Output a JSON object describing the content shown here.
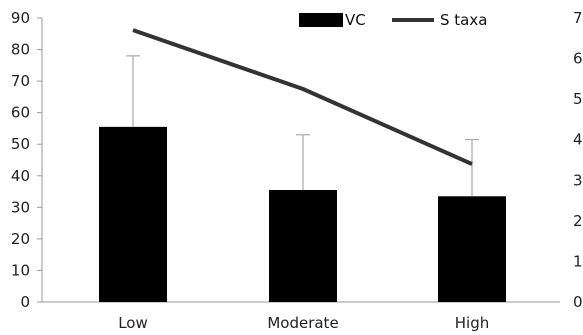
{
  "chart_data": {
    "type": "bar",
    "categories": [
      "Low",
      "Moderate",
      "High"
    ],
    "series": [
      {
        "name": "VC",
        "type": "bar",
        "axis": "left",
        "values": [
          55.5,
          35.5,
          33.5
        ],
        "error_upper": [
          78,
          53,
          51.5
        ],
        "color": "#000000"
      },
      {
        "name": "S taxa",
        "type": "line",
        "axis": "right",
        "values": [
          6.7,
          5.25,
          3.4
        ],
        "color": "#333333"
      }
    ],
    "y_left": {
      "ylim": [
        0,
        90
      ],
      "ticks": [
        0,
        10,
        20,
        30,
        40,
        50,
        60,
        70,
        80,
        90
      ]
    },
    "y_right": {
      "ylim": [
        0,
        7
      ],
      "ticks": [
        0,
        1,
        2,
        3,
        4,
        5,
        6,
        7
      ]
    },
    "xlabel": "",
    "ylabel": "",
    "title": "",
    "grid": false,
    "legend": {
      "position": "top-right",
      "entries": [
        "VC",
        "S taxa"
      ]
    }
  }
}
